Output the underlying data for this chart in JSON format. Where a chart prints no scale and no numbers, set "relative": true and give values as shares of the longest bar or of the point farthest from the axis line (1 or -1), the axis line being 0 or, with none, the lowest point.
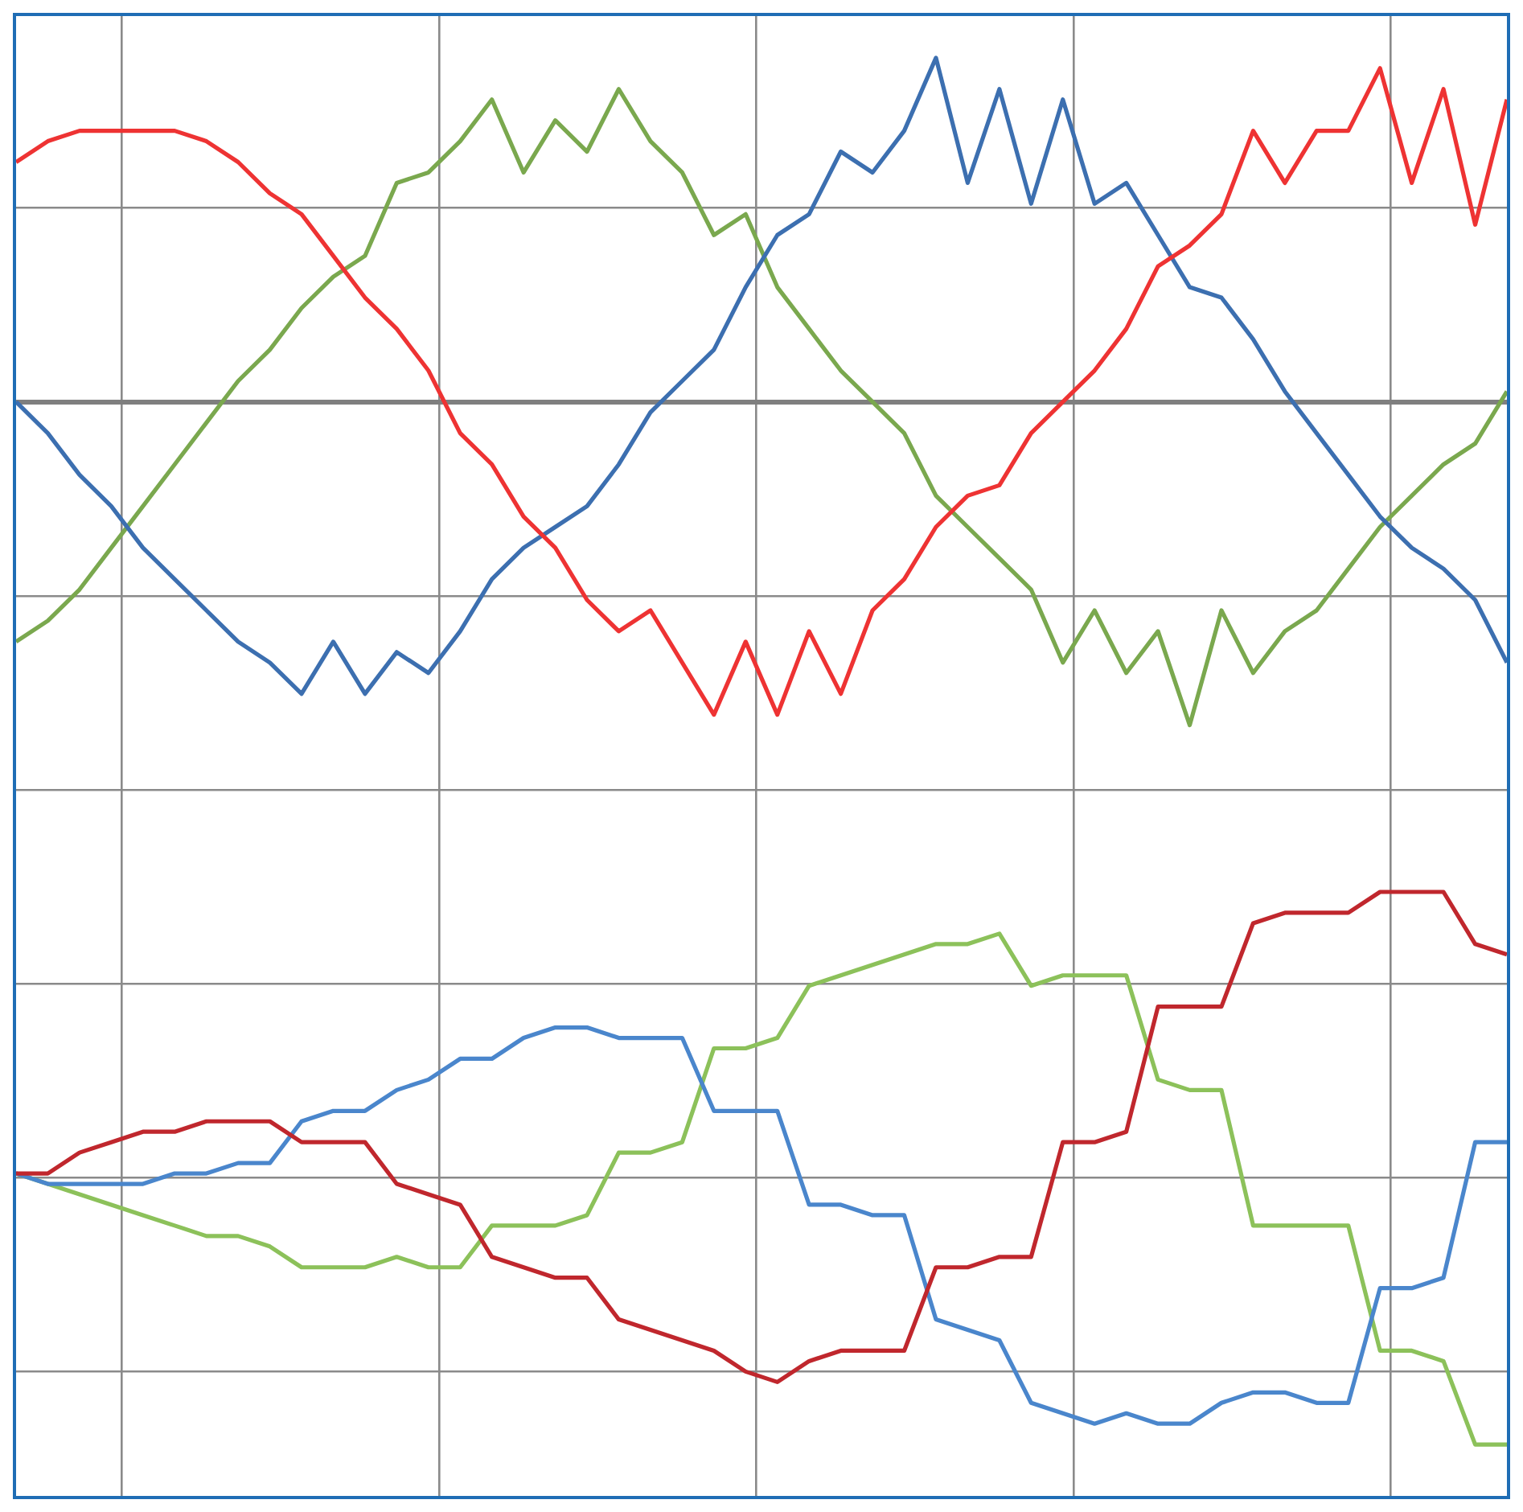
{
  "chart_data": {
    "type": "line",
    "relative": true,
    "grid": true,
    "legend": false,
    "marker": "none",
    "categories": [
      null,
      null,
      null,
      null,
      null,
      null,
      null,
      null,
      null,
      null,
      null,
      null,
      null,
      null,
      null,
      null,
      null,
      null,
      null,
      null,
      null,
      null,
      null,
      null,
      null,
      null,
      null,
      null,
      null,
      null,
      null,
      null,
      null,
      null,
      null,
      null,
      null,
      null,
      null,
      null,
      null,
      null,
      null,
      null,
      null,
      null,
      null,
      null
    ],
    "series": [
      {
        "color": "#ee3333",
        "values": [
          0.23,
          0.25,
          0.26,
          0.26,
          0.26,
          0.26,
          0.25,
          0.23,
          0.2,
          0.18,
          0.14,
          0.1,
          0.07,
          0.03,
          -0.03,
          -0.06,
          -0.11,
          -0.14,
          -0.19,
          -0.22,
          -0.2,
          -0.25,
          -0.3,
          -0.23,
          -0.3,
          -0.22,
          -0.28,
          -0.2,
          -0.17,
          -0.12,
          -0.09,
          -0.08,
          -0.03,
          0.0,
          0.03,
          0.07,
          0.13,
          0.15,
          0.18,
          0.26,
          0.21,
          0.26,
          0.26,
          0.32,
          0.21,
          0.3,
          0.17,
          0.29
        ]
      },
      {
        "color": "#3c6fb0",
        "values": [
          0.0,
          -0.03,
          -0.07,
          -0.1,
          -0.14,
          -0.17,
          -0.2,
          -0.23,
          -0.25,
          -0.28,
          -0.23,
          -0.28,
          -0.24,
          -0.26,
          -0.22,
          -0.17,
          -0.14,
          -0.12,
          -0.1,
          -0.06,
          -0.01,
          0.02,
          0.05,
          0.11,
          0.16,
          0.18,
          0.24,
          0.22,
          0.26,
          0.33,
          0.21,
          0.3,
          0.19,
          0.29,
          0.19,
          0.21,
          0.16,
          0.11,
          0.1,
          0.06,
          0.01,
          -0.03,
          -0.07,
          -0.11,
          -0.14,
          -0.16,
          -0.19,
          -0.25
        ]
      },
      {
        "color": "#7aa84e",
        "values": [
          -0.23,
          -0.21,
          -0.18,
          -0.14,
          -0.1,
          -0.06,
          -0.02,
          0.02,
          0.05,
          0.09,
          0.12,
          0.14,
          0.21,
          0.22,
          0.25,
          0.29,
          0.22,
          0.27,
          0.24,
          0.3,
          0.25,
          0.22,
          0.16,
          0.18,
          0.11,
          0.07,
          0.03,
          0.0,
          -0.03,
          -0.09,
          -0.12,
          -0.15,
          -0.18,
          -0.25,
          -0.2,
          -0.26,
          -0.22,
          -0.31,
          -0.2,
          -0.26,
          -0.22,
          -0.2,
          -0.16,
          -0.12,
          -0.09,
          -0.06,
          -0.04,
          0.01
        ]
      },
      {
        "color": "#c0272d",
        "values": [
          -0.74,
          -0.74,
          -0.72,
          -0.71,
          -0.7,
          -0.7,
          -0.69,
          -0.69,
          -0.69,
          -0.71,
          -0.71,
          -0.71,
          -0.75,
          -0.76,
          -0.77,
          -0.82,
          -0.83,
          -0.84,
          -0.84,
          -0.88,
          -0.89,
          -0.9,
          -0.91,
          -0.93,
          -0.94,
          -0.92,
          -0.91,
          -0.91,
          -0.91,
          -0.83,
          -0.83,
          -0.82,
          -0.82,
          -0.71,
          -0.71,
          -0.7,
          -0.58,
          -0.58,
          -0.58,
          -0.5,
          -0.49,
          -0.49,
          -0.49,
          -0.47,
          -0.47,
          -0.47,
          -0.52,
          -0.53
        ]
      },
      {
        "color": "#4a86cc",
        "values": [
          -0.74,
          -0.75,
          -0.75,
          -0.75,
          -0.75,
          -0.74,
          -0.74,
          -0.73,
          -0.73,
          -0.69,
          -0.68,
          -0.68,
          -0.66,
          -0.65,
          -0.63,
          -0.63,
          -0.61,
          -0.6,
          -0.6,
          -0.61,
          -0.61,
          -0.61,
          -0.68,
          -0.68,
          -0.68,
          -0.77,
          -0.77,
          -0.78,
          -0.78,
          -0.88,
          -0.89,
          -0.9,
          -0.96,
          -0.97,
          -0.98,
          -0.97,
          -0.98,
          -0.98,
          -0.96,
          -0.95,
          -0.95,
          -0.96,
          -0.96,
          -0.85,
          -0.85,
          -0.84,
          -0.71,
          -0.71
        ]
      },
      {
        "color": "#8cc15a",
        "values": [
          -0.74,
          -0.75,
          -0.76,
          -0.77,
          -0.78,
          -0.79,
          -0.8,
          -0.8,
          -0.81,
          -0.83,
          -0.83,
          -0.83,
          -0.82,
          -0.83,
          -0.83,
          -0.79,
          -0.79,
          -0.79,
          -0.78,
          -0.72,
          -0.72,
          -0.71,
          -0.62,
          -0.62,
          -0.61,
          -0.56,
          -0.55,
          -0.54,
          -0.53,
          -0.52,
          -0.52,
          -0.51,
          -0.56,
          -0.55,
          -0.55,
          -0.55,
          -0.65,
          -0.66,
          -0.66,
          -0.79,
          -0.79,
          -0.79,
          -0.79,
          -0.91,
          -0.91,
          -0.92,
          -1.0,
          -1.0
        ]
      }
    ]
  }
}
